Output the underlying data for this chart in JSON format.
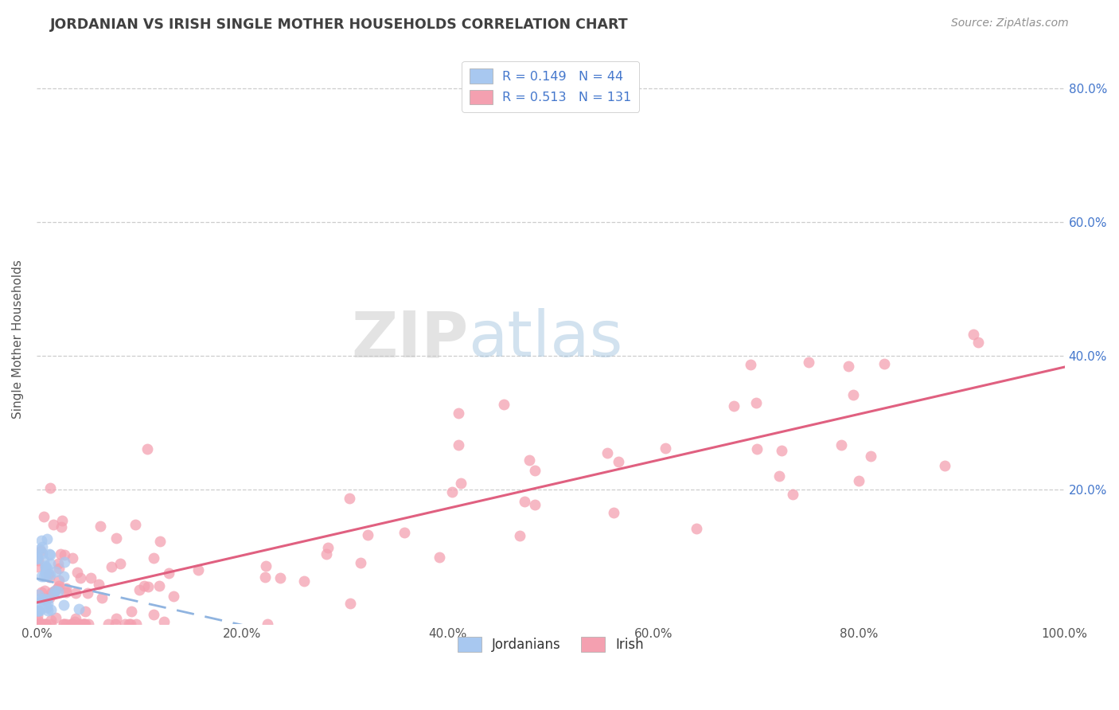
{
  "title": "JORDANIAN VS IRISH SINGLE MOTHER HOUSEHOLDS CORRELATION CHART",
  "source": "Source: ZipAtlas.com",
  "ylabel": "Single Mother Households",
  "xlim": [
    0.0,
    1.0
  ],
  "ylim": [
    0.0,
    0.85
  ],
  "xtick_vals": [
    0.0,
    0.2,
    0.4,
    0.6,
    0.8,
    1.0
  ],
  "xtick_labels": [
    "0.0%",
    "20.0%",
    "40.0%",
    "60.0%",
    "80.0%",
    "100.0%"
  ],
  "ytick_vals": [
    0.2,
    0.4,
    0.6,
    0.8
  ],
  "ytick_labels": [
    "20.0%",
    "40.0%",
    "60.0%",
    "80.0%"
  ],
  "legend1_label": "R = 0.149   N = 44",
  "legend2_label": "R = 0.513   N = 131",
  "legend_bottom_label1": "Jordanians",
  "legend_bottom_label2": "Irish",
  "R_jordanian": 0.149,
  "N_jordanian": 44,
  "R_irish": 0.513,
  "N_irish": 131,
  "color_jordanian": "#a8c8f0",
  "color_irish": "#f4a0b0",
  "color_jordanian_line": "#90b4e0",
  "color_irish_line": "#e06080",
  "background_color": "#ffffff",
  "grid_color": "#c8c8c8",
  "title_color": "#404040",
  "source_color": "#909090",
  "axis_label_color": "#555555",
  "tick_color": "#4477cc",
  "watermark_zip": "ZIP",
  "watermark_atlas": "atlas",
  "seed": 12345
}
